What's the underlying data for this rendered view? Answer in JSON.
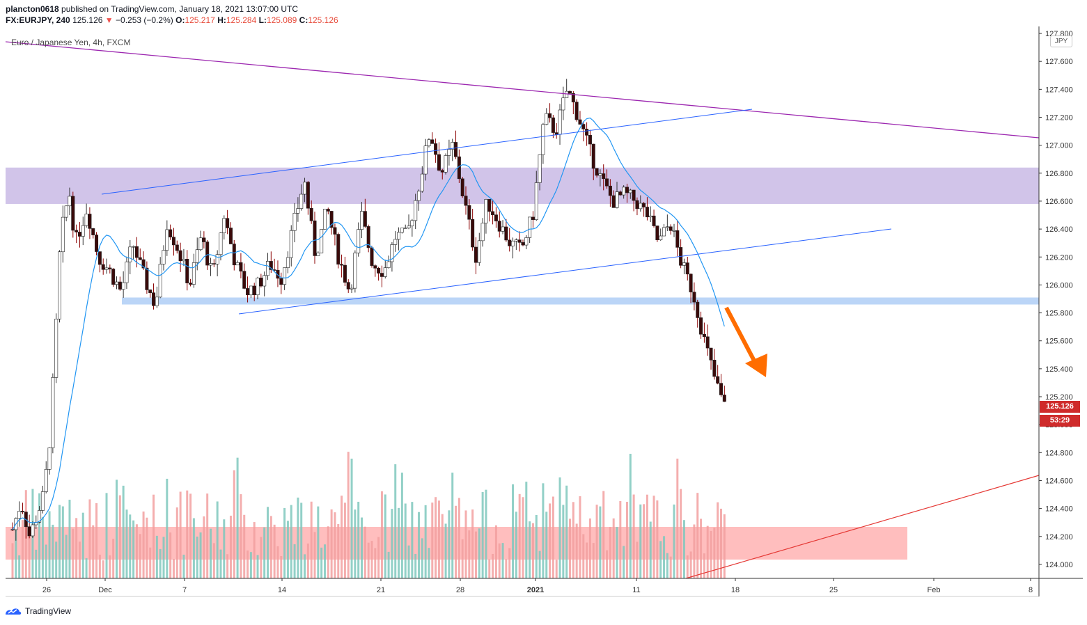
{
  "header": {
    "publisher": "plancton0618",
    "published_text": "published on TradingView.com, January 18, 2021 13:07:00 UTC",
    "symbol": "FX:EURJPY, 240",
    "last": "125.126",
    "change": "−0.253 (−0.2%)",
    "o_label": "O:",
    "o": "125.217",
    "h_label": "H:",
    "h": "125.284",
    "l_label": "L:",
    "l": "125.089",
    "c_label": "C:",
    "c": "125.126"
  },
  "chart_title": "Euro / Japanese Yen, 4h, FXCM",
  "currency_badge": "JPY",
  "price_tag": "125.126",
  "countdown_tag": "53:29",
  "footer_brand": "TradingView",
  "colors": {
    "up": "#26a69a",
    "down": "#ef5350",
    "candle": "#000000",
    "ma": "#2196f3",
    "trend": "#2962ff",
    "resistance_line": "#9c27b0",
    "support_line": "#e53935",
    "arrow": "#ff6d00",
    "zone_purple": "#d1c4e9",
    "zone_blue": "#bbd5f7",
    "zone_red": "#ffb3b3"
  },
  "chart_data": {
    "type": "candlestick",
    "y_axis": {
      "range": [
        123.9,
        127.85
      ],
      "ticks": [
        "127.800",
        "127.600",
        "127.400",
        "127.200",
        "127.000",
        "126.800",
        "126.600",
        "126.400",
        "126.200",
        "126.000",
        "125.800",
        "125.600",
        "125.400",
        "125.200",
        "125.000",
        "124.800",
        "124.600",
        "124.400",
        "124.200",
        "124.000"
      ]
    },
    "x_axis": {
      "ticks": [
        "26",
        "Dec",
        "7",
        "14",
        "21",
        "28",
        "2021",
        "11",
        "18",
        "25",
        "Feb",
        "8"
      ]
    },
    "price_path": [
      [
        0,
        124.25
      ],
      [
        1.5,
        124.45
      ],
      [
        3,
        124.2
      ],
      [
        5.5,
        124.5
      ],
      [
        6.5,
        124.9
      ],
      [
        7.5,
        125.6
      ],
      [
        8.2,
        126.2
      ],
      [
        9,
        126.5
      ],
      [
        10,
        126.65
      ],
      [
        11,
        126.3
      ],
      [
        13,
        126.55
      ],
      [
        15,
        126.2
      ],
      [
        17,
        126.1
      ],
      [
        19,
        125.95
      ],
      [
        21,
        126.3
      ],
      [
        23,
        126.05
      ],
      [
        25,
        125.85
      ],
      [
        27,
        126.45
      ],
      [
        29,
        126.25
      ],
      [
        31,
        126.0
      ],
      [
        33,
        126.35
      ],
      [
        35,
        126.05
      ],
      [
        37,
        126.5
      ],
      [
        39,
        126.15
      ],
      [
        41,
        125.95
      ],
      [
        43,
        126.0
      ],
      [
        45,
        126.15
      ],
      [
        47,
        126.05
      ],
      [
        49,
        126.4
      ],
      [
        51,
        126.75
      ],
      [
        53,
        126.2
      ],
      [
        55,
        126.55
      ],
      [
        57,
        126.2
      ],
      [
        59,
        125.95
      ],
      [
        61,
        126.5
      ],
      [
        63,
        126.15
      ],
      [
        65,
        126.1
      ],
      [
        67,
        126.35
      ],
      [
        69,
        126.35
      ],
      [
        71,
        126.7
      ],
      [
        73,
        127.1
      ],
      [
        75,
        126.8
      ],
      [
        77,
        127.0
      ],
      [
        79,
        126.6
      ],
      [
        81,
        126.2
      ],
      [
        83,
        126.6
      ],
      [
        85,
        126.45
      ],
      [
        87,
        126.3
      ],
      [
        89,
        126.25
      ],
      [
        91,
        126.5
      ],
      [
        93,
        127.2
      ],
      [
        95,
        127.1
      ],
      [
        97,
        127.4
      ],
      [
        99,
        127.2
      ],
      [
        101,
        126.95
      ],
      [
        103,
        126.75
      ],
      [
        105,
        126.6
      ],
      [
        107,
        126.65
      ],
      [
        109,
        126.6
      ],
      [
        111,
        126.5
      ],
      [
        113,
        126.3
      ],
      [
        115,
        126.45
      ],
      [
        117,
        126.15
      ],
      [
        119,
        125.95
      ],
      [
        121,
        125.6
      ],
      [
        123,
        125.3
      ],
      [
        124.5,
        125.13
      ]
    ],
    "overlays": {
      "resistance_zone": [
        126.58,
        126.84
      ],
      "support_zone": [
        125.86,
        125.91
      ],
      "moving_average": "included"
    },
    "volume_zone_visible": true
  }
}
